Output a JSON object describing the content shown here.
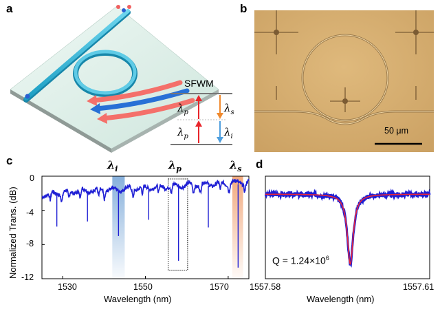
{
  "panels": {
    "a": "a",
    "b": "b",
    "c": "c",
    "d": "d"
  },
  "panel_a": {
    "process": "SFWM",
    "lambda_p": "λ",
    "sub_p": "p",
    "lambda_s": "λ",
    "sub_s": "s",
    "lambda_i": "λ",
    "sub_i": "i",
    "colors": {
      "waveguide": "#29b5d6",
      "pump": "#e8252b",
      "signal": "#f08a2f",
      "idler": "#4f9fde",
      "substrate": "#dcefe8"
    }
  },
  "panel_b": {
    "scalebar_label": "50 μm",
    "background": "#d6ac6e"
  },
  "chart_data": [
    {
      "type": "line",
      "panel": "c",
      "xlabel": "Wavelength (nm)",
      "ylabel": "Normalized Trans. (dB)",
      "xlim": [
        1525,
        1575
      ],
      "ylim": [
        -12,
        0
      ],
      "xticks": [
        "1530",
        "1550",
        "1570"
      ],
      "yticks": [
        "0",
        "-4",
        "-8",
        "-12"
      ],
      "highlights": [
        {
          "name": "λi",
          "base": "λ",
          "sub": "i",
          "range": [
            1542,
            1545
          ],
          "color": "#7aa8d8",
          "style": "band"
        },
        {
          "name": "λp",
          "base": "λ",
          "sub": "p",
          "range": [
            1555.5,
            1560.2
          ],
          "color": "#000000",
          "style": "dotted-box"
        },
        {
          "name": "λs",
          "base": "λ",
          "sub": "s",
          "range": [
            1571,
            1573.6
          ],
          "color": "#f0a070",
          "style": "band"
        }
      ],
      "baseline": [
        [
          1525,
          -2.2
        ],
        [
          1530,
          -1.9
        ],
        [
          1535,
          -1.7
        ],
        [
          1540,
          -1.6
        ],
        [
          1545,
          -1.5
        ],
        [
          1550,
          -1.35
        ],
        [
          1555,
          -1.2
        ],
        [
          1560,
          -1.05
        ],
        [
          1565,
          -0.95
        ],
        [
          1570,
          -0.8
        ],
        [
          1575,
          -0.7
        ]
      ],
      "dips": [
        {
          "x": 1528.6,
          "depth": -5.9
        },
        {
          "x": 1536.0,
          "depth": -5.3
        },
        {
          "x": 1543.5,
          "depth": -7.0
        },
        {
          "x": 1550.8,
          "depth": -5.1
        },
        {
          "x": 1558.0,
          "depth": -9.9
        },
        {
          "x": 1565.2,
          "depth": -6.0
        },
        {
          "x": 1572.4,
          "depth": -10.7
        }
      ],
      "small_dips": [
        1527.0,
        1529.8,
        1531.5,
        1534.2,
        1538.7,
        1540.1,
        1547.0,
        1549.3,
        1553.2,
        1556.3,
        1561.6,
        1563.3,
        1568.1,
        1570.2,
        1574.0
      ],
      "color": "#1f1fd4"
    },
    {
      "type": "line",
      "panel": "d",
      "xlabel": "Wavelength (nm)",
      "x_start_label": "1557.58",
      "x_end_label": "1557.61",
      "xlim": [
        1557.58,
        1557.61
      ],
      "ylim": [
        -12,
        0
      ],
      "center": 1557.5955,
      "fwhm": 0.0013,
      "baseline": -2.1,
      "min": -10.3,
      "annotation": "Q = 1.24×10",
      "annotation_exp": "6",
      "data_color": "#1f1fd4",
      "fit_color": "#e8253a"
    }
  ]
}
